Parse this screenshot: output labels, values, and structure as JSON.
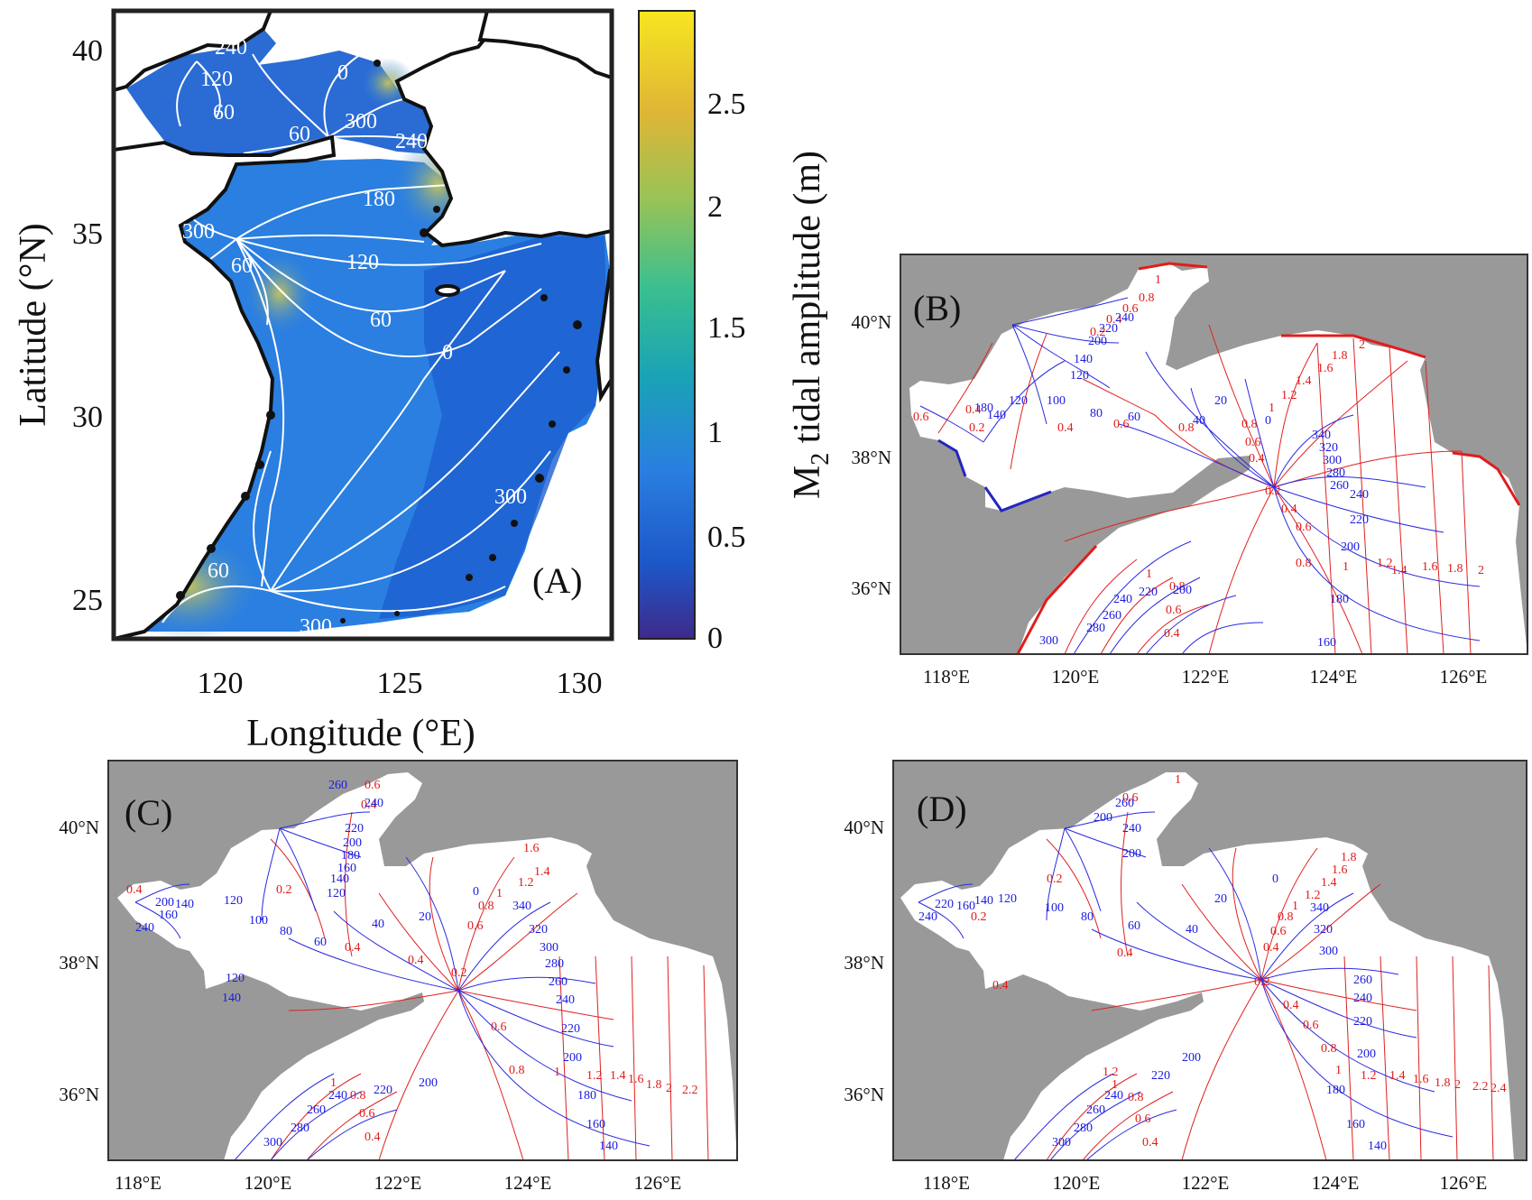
{
  "panel_a": {
    "label": "(A)",
    "xlabel": "Longitude (°E)",
    "ylabel": "Latitude (°N)",
    "x_ticks": [
      "120",
      "125",
      "130"
    ],
    "y_ticks": [
      "40",
      "35",
      "30",
      "25"
    ],
    "colorbar": {
      "title_main": "M",
      "title_sub": "2",
      "title_rest": " tidal amplitude (m)",
      "ticks": [
        "0",
        "0.5",
        "1",
        "1.5",
        "2",
        "2.5"
      ],
      "colors": [
        "#3e2a8a",
        "#1d57c8",
        "#2a7fe0",
        "#1aa3b5",
        "#3bbf8f",
        "#99c357",
        "#e0b535",
        "#f7e620"
      ]
    },
    "phase_labels": [
      "240",
      "120",
      "60",
      "0",
      "60",
      "300",
      "240",
      "180",
      "300",
      "60",
      "120",
      "60",
      "0",
      "300",
      "60",
      "300"
    ]
  },
  "map_axes": {
    "x_ticks": [
      "118°E",
      "120°E",
      "122°E",
      "124°E",
      "126°E"
    ],
    "y_ticks": [
      "40°N",
      "38°N",
      "36°N"
    ]
  },
  "panel_b": {
    "label": "(B)",
    "amp_labels": [
      "1",
      "0.8",
      "0.6",
      "0.4",
      "0.2",
      "0.6",
      "0.4",
      "0.2",
      "0.4",
      "0.6",
      "0.8",
      "2",
      "1.8",
      "1.6",
      "1.4",
      "1.2",
      "1",
      "0.8",
      "0.6",
      "0.4",
      "0.2",
      "0.4",
      "0.6",
      "0.8",
      "1",
      "1.2",
      "1.4",
      "1.6",
      "1.8",
      "2",
      "1",
      "0.8",
      "0.6",
      "0.4"
    ],
    "phase_labels": [
      "240",
      "220",
      "200",
      "140",
      "120",
      "180",
      "140",
      "120",
      "100",
      "80",
      "60",
      "40",
      "20",
      "0",
      "340",
      "320",
      "300",
      "280",
      "260",
      "240",
      "220",
      "200",
      "180",
      "160",
      "300",
      "280",
      "260",
      "240",
      "220",
      "200"
    ]
  },
  "panel_c": {
    "label": "(C)",
    "amp_labels": [
      "0.6",
      "0.4",
      "0.4",
      "0.2",
      "0.4",
      "0.4",
      "1.6",
      "1.4",
      "1.2",
      "1",
      "0.8",
      "0.6",
      "0.2",
      "0.6",
      "0.8",
      "1",
      "1.2",
      "1.4",
      "1.6",
      "1.8",
      "2",
      "2.2",
      "1",
      "0.8",
      "0.6",
      "0.4"
    ],
    "phase_labels": [
      "260",
      "240",
      "220",
      "200",
      "180",
      "160",
      "140",
      "120",
      "200",
      "160",
      "140",
      "120",
      "100",
      "80",
      "60",
      "240",
      "120",
      "140",
      "40",
      "20",
      "0",
      "340",
      "320",
      "300",
      "280",
      "260",
      "240",
      "220",
      "200",
      "180",
      "160",
      "140",
      "300",
      "280",
      "260",
      "240",
      "220",
      "200"
    ]
  },
  "panel_d": {
    "label": "(D)",
    "amp_labels": [
      "1",
      "0.6",
      "0.2",
      "0.2",
      "0.4",
      "0.4",
      "1.8",
      "1.6",
      "1.4",
      "1.2",
      "1",
      "0.8",
      "0.6",
      "0.4",
      "0.2",
      "0.4",
      "0.6",
      "0.8",
      "1",
      "1.2",
      "1.4",
      "1.6",
      "1.8",
      "2",
      "2.2",
      "2.4",
      "1.2",
      "1",
      "0.8",
      "0.6",
      "0.4"
    ],
    "phase_labels": [
      "260",
      "240",
      "200",
      "200",
      "240",
      "220",
      "160",
      "140",
      "120",
      "100",
      "80",
      "60",
      "40",
      "20",
      "0",
      "340",
      "320",
      "300",
      "260",
      "240",
      "220",
      "200",
      "180",
      "160",
      "140",
      "300",
      "280",
      "260",
      "240",
      "220",
      "200"
    ]
  }
}
